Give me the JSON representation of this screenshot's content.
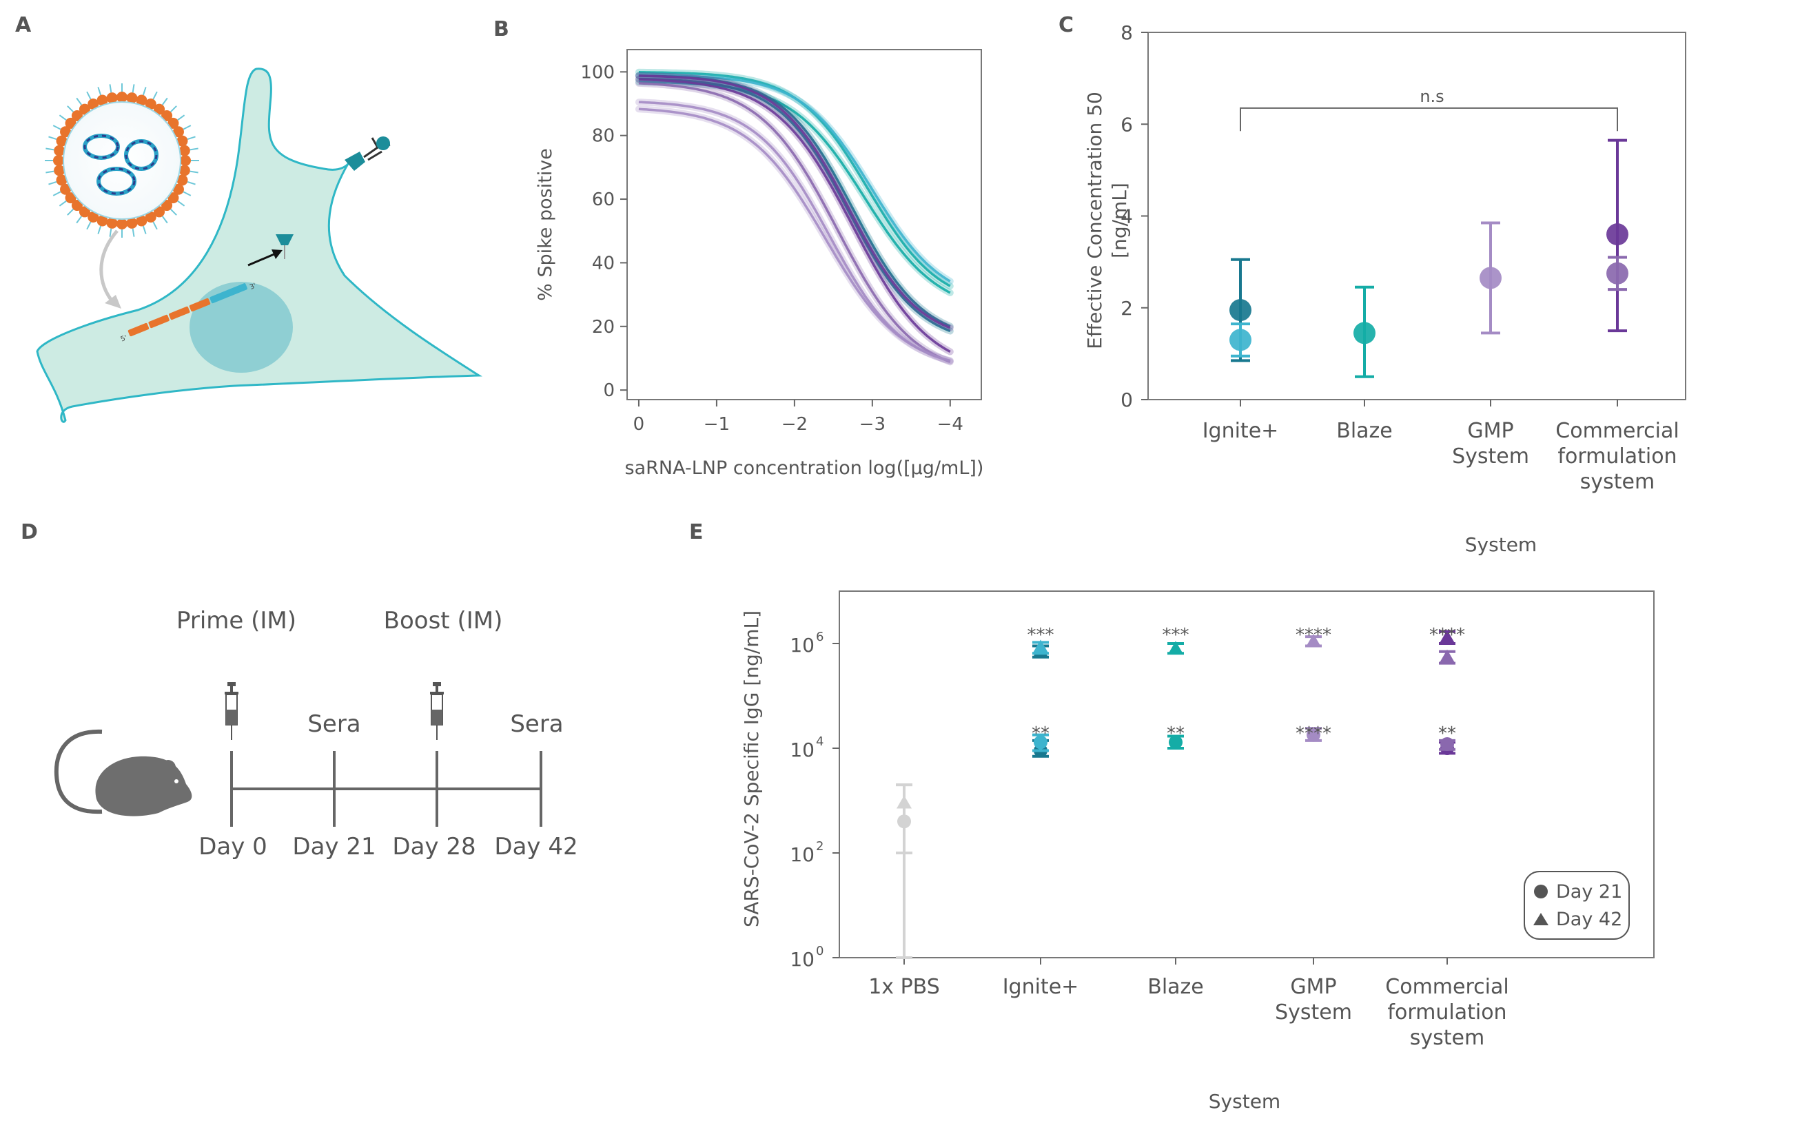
{
  "panels": {
    "A": "A",
    "B": "B",
    "C": "C",
    "D": "D",
    "E": "E"
  },
  "colors": {
    "ignite_dark": "#18788F",
    "ignite_light": "#3DB4CE",
    "blaze": "#14ACA6",
    "gmp": "#A48BC4",
    "commercial_dark": "#6A3898",
    "commercial_light": "#8A68AE",
    "pbs": "#D3D3D3",
    "cell": "#CDEBE3",
    "cell_edge": "#2FB7C6",
    "nucleus": "#8FCFD3",
    "axis": "#666666"
  },
  "timeline": {
    "prime_label": "Prime (IM)",
    "boost_label": "Boost (IM)",
    "sera_label_1": "Sera",
    "sera_label_2": "Sera",
    "days": [
      "Day 0",
      "Day 21",
      "Day 28",
      "Day 42"
    ]
  },
  "chart_data": [
    {
      "panel": "B",
      "type": "line",
      "xlabel": "saRNA-LNP concentration log([µg/mL])",
      "ylabel": "% Spike positive",
      "x_ticks": [
        0,
        -1,
        -2,
        -3,
        -4
      ],
      "x_tick_labels": [
        "0",
        "−1",
        "−2",
        "−3",
        "−4"
      ],
      "y_ticks": [
        0,
        20,
        40,
        60,
        80,
        100
      ],
      "xlim": [
        0.15,
        -4.4
      ],
      "ylim": [
        -3,
        107
      ],
      "series": [
        {
          "color": "#14ACA6",
          "top": 100,
          "bottom": 26,
          "mid": -2.95,
          "slope": 2.2
        },
        {
          "color": "#3DB4CE",
          "top": 99,
          "bottom": 27,
          "mid": -3.0,
          "slope": 2.2
        },
        {
          "color": "#14ACA6",
          "top": 97,
          "bottom": 24,
          "mid": -2.9,
          "slope": 2.1
        },
        {
          "color": "#18788F",
          "top": 99,
          "bottom": 15,
          "mid": -2.75,
          "slope": 2.2
        },
        {
          "color": "#18788F",
          "top": 98,
          "bottom": 14,
          "mid": -2.7,
          "slope": 2.2
        },
        {
          "color": "#6A3898",
          "top": 99,
          "bottom": 15,
          "mid": -2.7,
          "slope": 2.2
        },
        {
          "color": "#6A3898",
          "top": 98,
          "bottom": 5,
          "mid": -2.75,
          "slope": 2.0
        },
        {
          "color": "#8A68AE",
          "top": 97,
          "bottom": 4,
          "mid": -2.55,
          "slope": 2.0
        },
        {
          "color": "#A48BC4",
          "top": 91,
          "bottom": 6,
          "mid": -2.45,
          "slope": 2.1
        },
        {
          "color": "#A48BC4",
          "top": 89,
          "bottom": 6,
          "mid": -2.4,
          "slope": 2.0
        }
      ]
    },
    {
      "panel": "C",
      "type": "scatter",
      "xlabel": "System",
      "ylabel": "Effective Concentration 50 [ng/mL]",
      "ylabel_lines": [
        "Effective Concentration 50",
        "[ng/mL]"
      ],
      "ylim": [
        0,
        8
      ],
      "y_ticks": [
        0,
        2,
        4,
        6,
        8
      ],
      "categories": [
        "Ignite+",
        "Blaze",
        "GMP System",
        "Commercial formulation system"
      ],
      "category_lines": [
        [
          "Ignite+"
        ],
        [
          "Blaze"
        ],
        [
          "GMP",
          "System"
        ],
        [
          "Commercial",
          "formulation",
          "system"
        ]
      ],
      "annotation": "n.s",
      "points": [
        {
          "category": 0,
          "value": 1.95,
          "low": 0.85,
          "high": 3.05,
          "color": "#18788F"
        },
        {
          "category": 0,
          "value": 1.3,
          "low": 0.95,
          "high": 1.65,
          "color": "#3DB4CE"
        },
        {
          "category": 1,
          "value": 1.45,
          "low": 0.5,
          "high": 2.45,
          "color": "#14ACA6"
        },
        {
          "category": 2,
          "value": 2.65,
          "low": 1.45,
          "high": 3.85,
          "color": "#A48BC4"
        },
        {
          "category": 3,
          "value": 3.6,
          "low": 1.5,
          "high": 5.65,
          "color": "#6A3898"
        },
        {
          "category": 3,
          "value": 2.75,
          "low": 2.4,
          "high": 3.1,
          "color": "#8A68AE"
        }
      ]
    },
    {
      "panel": "E",
      "type": "scatter",
      "xlabel": "System",
      "ylabel": "SARS-CoV-2 Specific IgG [ng/mL]",
      "y_scale": "log",
      "ylim": [
        1,
        10000000
      ],
      "y_tick_labels": [
        {
          "value": 1,
          "base": "10",
          "exp": "0"
        },
        {
          "value": 100,
          "base": "10",
          "exp": "2"
        },
        {
          "value": 10000,
          "base": "10",
          "exp": "4"
        },
        {
          "value": 1000000,
          "base": "10",
          "exp": "6"
        }
      ],
      "categories": [
        "1x PBS",
        "Ignite+",
        "Blaze",
        "GMP System",
        "Commercial formulation system"
      ],
      "category_lines": [
        [
          "1x PBS"
        ],
        [
          "Ignite+"
        ],
        [
          "Blaze"
        ],
        [
          "GMP",
          "System"
        ],
        [
          "Commercial",
          "formulation",
          "system"
        ]
      ],
      "legend": {
        "position": "bottom-right",
        "entries": [
          {
            "marker": "circle",
            "label": "Day 21"
          },
          {
            "marker": "triangle",
            "label": "Day 42"
          }
        ]
      },
      "points": [
        {
          "category": 0,
          "day": 21,
          "value": 400,
          "low": 1,
          "high": 2000,
          "color": "#D3D3D3"
        },
        {
          "category": 0,
          "day": 42,
          "value": 900,
          "low": 100,
          "high": 2000,
          "color": "#D3D3D3"
        },
        {
          "category": 1,
          "day": 21,
          "value": 9000,
          "low": 7000,
          "high": 14000,
          "color": "#18788F"
        },
        {
          "category": 1,
          "day": 21,
          "value": 13000,
          "low": 9000,
          "high": 18000,
          "color": "#3DB4CE"
        },
        {
          "category": 1,
          "day": 42,
          "value": 700000,
          "low": 550000,
          "high": 900000,
          "color": "#18788F"
        },
        {
          "category": 1,
          "day": 42,
          "value": 850000,
          "low": 650000,
          "high": 1050000,
          "color": "#3DB4CE"
        },
        {
          "category": 2,
          "day": 21,
          "value": 13000,
          "low": 10000,
          "high": 17000,
          "color": "#14ACA6"
        },
        {
          "category": 2,
          "day": 42,
          "value": 800000,
          "low": 650000,
          "high": 1000000,
          "color": "#14ACA6"
        },
        {
          "category": 3,
          "day": 21,
          "value": 18000,
          "low": 14000,
          "high": 24000,
          "color": "#A48BC4"
        },
        {
          "category": 3,
          "day": 42,
          "value": 1100000,
          "low": 900000,
          "high": 1350000,
          "color": "#A48BC4"
        },
        {
          "category": 4,
          "day": 21,
          "value": 10000,
          "low": 8000,
          "high": 13000,
          "color": "#6A3898"
        },
        {
          "category": 4,
          "day": 21,
          "value": 12000,
          "low": 9500,
          "high": 14000,
          "color": "#8A68AE"
        },
        {
          "category": 4,
          "day": 42,
          "value": 1300000,
          "low": 1000000,
          "high": 1700000,
          "color": "#6A3898"
        },
        {
          "category": 4,
          "day": 42,
          "value": 550000,
          "low": 420000,
          "high": 700000,
          "color": "#8A68AE"
        }
      ],
      "significance": [
        {
          "category": 1,
          "day": 42,
          "label": "***"
        },
        {
          "category": 1,
          "day": 21,
          "label": "**"
        },
        {
          "category": 2,
          "day": 42,
          "label": "***"
        },
        {
          "category": 2,
          "day": 21,
          "label": "**"
        },
        {
          "category": 3,
          "day": 42,
          "label": "****"
        },
        {
          "category": 3,
          "day": 21,
          "label": "****"
        },
        {
          "category": 4,
          "day": 42,
          "label": "****"
        },
        {
          "category": 4,
          "day": 21,
          "label": "**"
        }
      ]
    }
  ]
}
